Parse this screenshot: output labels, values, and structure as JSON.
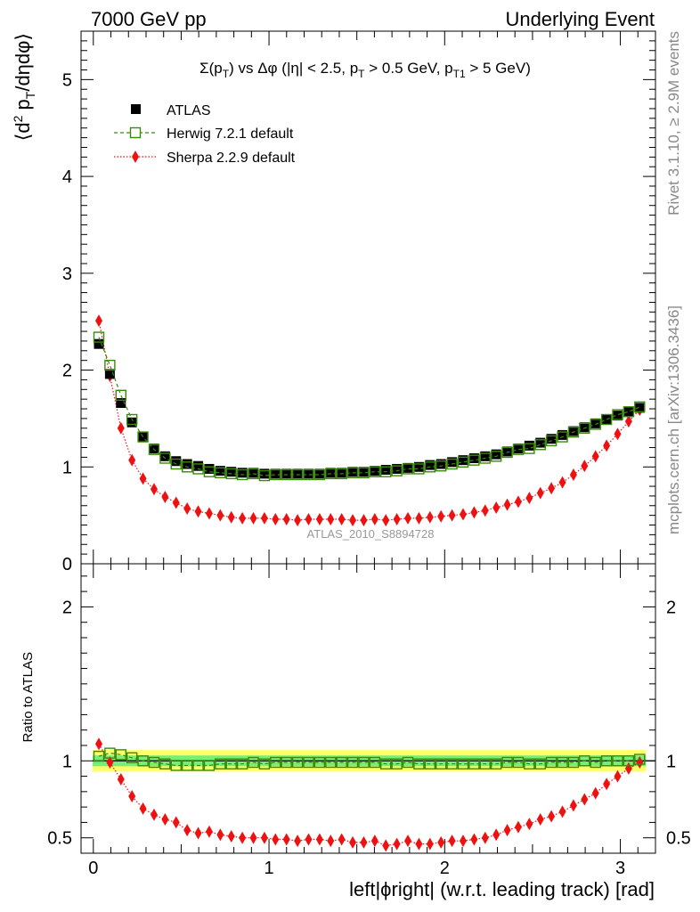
{
  "header": {
    "left": "7000 GeV pp",
    "right": "Underlying Event"
  },
  "side_labels": {
    "rivet": "Rivet 3.1.10, ≥ 2.9M events",
    "mcplots": "mcplots.cern.ch [arXiv:1306.3436]"
  },
  "watermark": "ATLAS_2010_S8894728",
  "colors": {
    "atlas": "#000000",
    "herwig": "#3a8a0a",
    "sherpa": "#ee1111",
    "band_outer": "#ffff66",
    "band_inner": "#77ee77"
  },
  "chart_data": [
    {
      "type": "scatter",
      "panel": "main",
      "title": "Σ(p_T) vs Δφ (|η| < 2.5, p_T > 0.5 GeV, p_T1 > 5 GeV)",
      "title_parts": [
        "Σ(p",
        "T",
        ") vs Δφ (|η| < 2.5, p",
        "T",
        " > 0.5 GeV, p",
        "T1",
        " > 5 GeV)"
      ],
      "ylabel": "⟨d² p_T/dηdφ⟩",
      "ylabel_parts": [
        "⟨d",
        "2",
        " p",
        "T",
        "/dηdφ⟩"
      ],
      "xlim": [
        -0.07,
        3.2
      ],
      "ylim": [
        0,
        5.5
      ],
      "yticks": [
        0,
        1,
        2,
        3,
        4,
        5
      ],
      "ytick_labels": [
        "0",
        "1",
        "2",
        "3",
        "4",
        "5"
      ],
      "legend_position": "top-left",
      "x": [
        0.0314,
        0.0942,
        0.1571,
        0.2199,
        0.2827,
        0.3456,
        0.4084,
        0.4712,
        0.5341,
        0.5969,
        0.6597,
        0.7226,
        0.7854,
        0.8482,
        0.9111,
        0.9739,
        1.0367,
        1.0996,
        1.1624,
        1.2252,
        1.2881,
        1.3509,
        1.4137,
        1.4765,
        1.5394,
        1.6022,
        1.665,
        1.7279,
        1.7907,
        1.8535,
        1.9164,
        1.9792,
        2.042,
        2.1049,
        2.1677,
        2.2305,
        2.2934,
        2.3562,
        2.419,
        2.4819,
        2.5447,
        2.6075,
        2.6704,
        2.7332,
        2.796,
        2.8589,
        2.9217,
        2.9845,
        3.0474,
        3.1102
      ],
      "series": [
        {
          "name": "ATLAS",
          "marker": "filled-square",
          "values": [
            2.27,
            1.96,
            1.66,
            1.46,
            1.31,
            1.19,
            1.11,
            1.06,
            1.03,
            1.01,
            0.98,
            0.96,
            0.95,
            0.94,
            0.94,
            0.93,
            0.93,
            0.93,
            0.93,
            0.93,
            0.93,
            0.94,
            0.94,
            0.95,
            0.95,
            0.96,
            0.97,
            0.98,
            0.99,
            1.0,
            1.02,
            1.03,
            1.05,
            1.07,
            1.09,
            1.11,
            1.13,
            1.16,
            1.19,
            1.22,
            1.25,
            1.29,
            1.33,
            1.37,
            1.41,
            1.45,
            1.49,
            1.53,
            1.57,
            1.61
          ]
        },
        {
          "name": "Herwig 7.2.1 default",
          "marker": "open-square",
          "line": "dashed",
          "values": [
            2.34,
            2.05,
            1.74,
            1.49,
            1.31,
            1.18,
            1.09,
            1.03,
            1.0,
            0.98,
            0.95,
            0.94,
            0.93,
            0.92,
            0.93,
            0.91,
            0.92,
            0.92,
            0.92,
            0.92,
            0.92,
            0.93,
            0.93,
            0.94,
            0.94,
            0.95,
            0.95,
            0.96,
            0.98,
            0.98,
            1.0,
            1.01,
            1.03,
            1.05,
            1.07,
            1.09,
            1.11,
            1.15,
            1.18,
            1.19,
            1.23,
            1.27,
            1.31,
            1.36,
            1.4,
            1.44,
            1.49,
            1.54,
            1.57,
            1.62
          ]
        },
        {
          "name": "Sherpa 2.2.9 default",
          "marker": "filled-diamond",
          "line": "dotted",
          "values": [
            2.51,
            1.94,
            1.4,
            1.07,
            0.88,
            0.77,
            0.69,
            0.63,
            0.57,
            0.54,
            0.52,
            0.5,
            0.48,
            0.47,
            0.47,
            0.47,
            0.46,
            0.46,
            0.45,
            0.46,
            0.46,
            0.46,
            0.46,
            0.45,
            0.45,
            0.46,
            0.45,
            0.46,
            0.47,
            0.47,
            0.48,
            0.49,
            0.5,
            0.51,
            0.53,
            0.55,
            0.58,
            0.61,
            0.64,
            0.68,
            0.73,
            0.78,
            0.84,
            0.92,
            1.01,
            1.11,
            1.22,
            1.34,
            1.47,
            1.59
          ]
        }
      ]
    },
    {
      "type": "scatter",
      "panel": "ratio",
      "ylabel": "Ratio to ATLAS",
      "xlabel": "left|ϕright| (w.r.t. leading track) [rad]",
      "xlim": [
        -0.07,
        3.2
      ],
      "ylim": [
        0.4,
        2.28
      ],
      "xticks": [
        0,
        1,
        2,
        3
      ],
      "xtick_labels": [
        "0",
        "1",
        "2",
        "3"
      ],
      "yticks": [
        0.5,
        1,
        2
      ],
      "ytick_labels": [
        "0.5",
        "1",
        "2"
      ],
      "reference_line": 1.0,
      "band_outer": [
        0.93,
        1.07
      ],
      "band_inner": [
        0.965,
        1.035
      ],
      "series": [
        {
          "name": "Herwig 7.2.1 default",
          "marker": "open-square",
          "line": "dashed",
          "values": [
            1.03,
            1.05,
            1.04,
            1.02,
            1.0,
            0.99,
            0.98,
            0.97,
            0.97,
            0.97,
            0.97,
            0.98,
            0.98,
            0.98,
            0.99,
            0.98,
            0.99,
            0.99,
            0.99,
            0.99,
            0.99,
            0.99,
            0.99,
            0.99,
            0.99,
            0.99,
            0.98,
            0.98,
            0.99,
            0.98,
            0.98,
            0.98,
            0.98,
            0.98,
            0.98,
            0.98,
            0.98,
            0.99,
            0.99,
            0.98,
            0.98,
            0.99,
            0.99,
            0.99,
            1.0,
            0.99,
            1.0,
            1.0,
            1.0,
            1.01
          ]
        },
        {
          "name": "Sherpa 2.2.9 default",
          "marker": "filled-diamond",
          "line": "dotted",
          "values": [
            1.11,
            0.99,
            0.88,
            0.77,
            0.69,
            0.65,
            0.62,
            0.6,
            0.55,
            0.53,
            0.54,
            0.52,
            0.51,
            0.5,
            0.5,
            0.5,
            0.49,
            0.49,
            0.48,
            0.49,
            0.49,
            0.48,
            0.49,
            0.47,
            0.47,
            0.48,
            0.45,
            0.46,
            0.48,
            0.46,
            0.46,
            0.47,
            0.48,
            0.48,
            0.49,
            0.5,
            0.52,
            0.55,
            0.57,
            0.59,
            0.62,
            0.64,
            0.67,
            0.71,
            0.75,
            0.79,
            0.85,
            0.9,
            0.95,
            0.99
          ]
        }
      ]
    }
  ]
}
